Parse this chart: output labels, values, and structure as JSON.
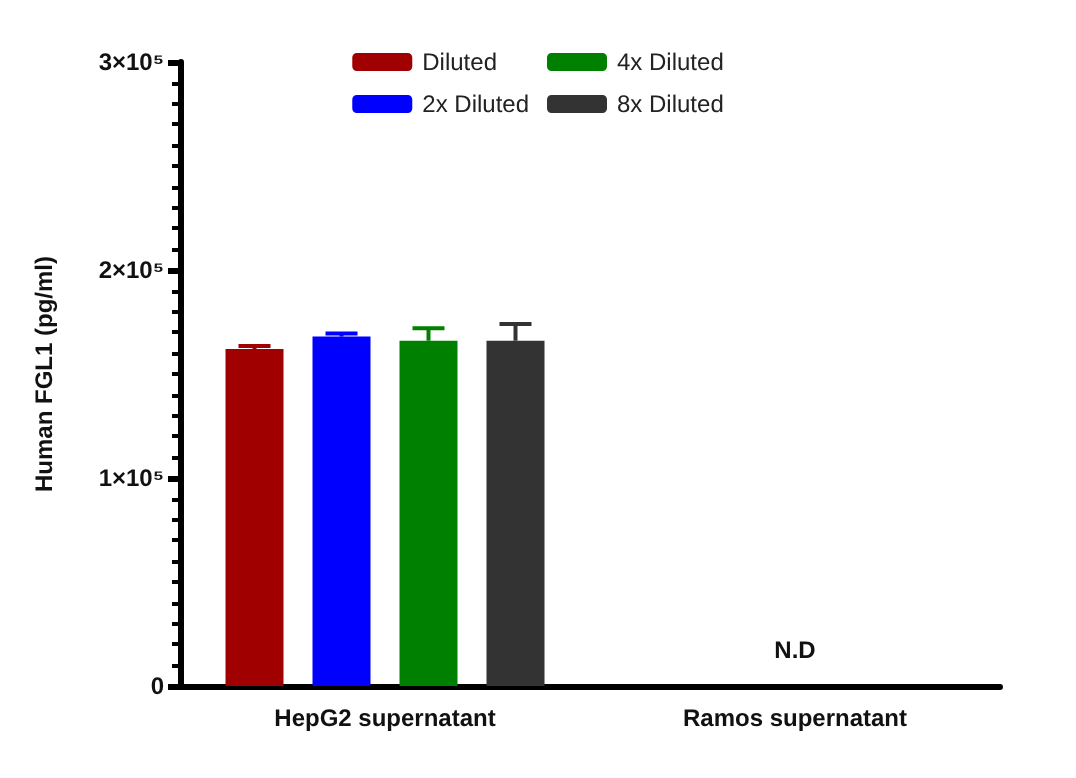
{
  "chart_data": {
    "type": "bar",
    "ylabel": "Human FGL1 (pg/ml)",
    "categories": [
      "HepG2 supernatant",
      "Ramos supernatant"
    ],
    "series": [
      {
        "name": "Diluted",
        "color": "#a00000",
        "values": [
          162000,
          null
        ],
        "errors": [
          1500,
          null
        ]
      },
      {
        "name": "2x Diluted",
        "color": "#0000ff",
        "values": [
          168000,
          null
        ],
        "errors": [
          1500,
          null
        ]
      },
      {
        "name": "4x Diluted",
        "color": "#008000",
        "values": [
          166000,
          null
        ],
        "errors": [
          6000,
          null
        ]
      },
      {
        "name": "8x Diluted",
        "color": "#333333",
        "values": [
          166000,
          null
        ],
        "errors": [
          8000,
          null
        ]
      }
    ],
    "ylim": [
      0,
      300000
    ],
    "yticks": [
      0,
      {
        "value": 100000,
        "label": "1×10⁵"
      },
      {
        "value": 200000,
        "label": "2×10⁵"
      },
      {
        "value": 300000,
        "label": "3×10⁵"
      }
    ],
    "annotations": [
      "N.D"
    ],
    "grid": false,
    "legend": "top"
  }
}
